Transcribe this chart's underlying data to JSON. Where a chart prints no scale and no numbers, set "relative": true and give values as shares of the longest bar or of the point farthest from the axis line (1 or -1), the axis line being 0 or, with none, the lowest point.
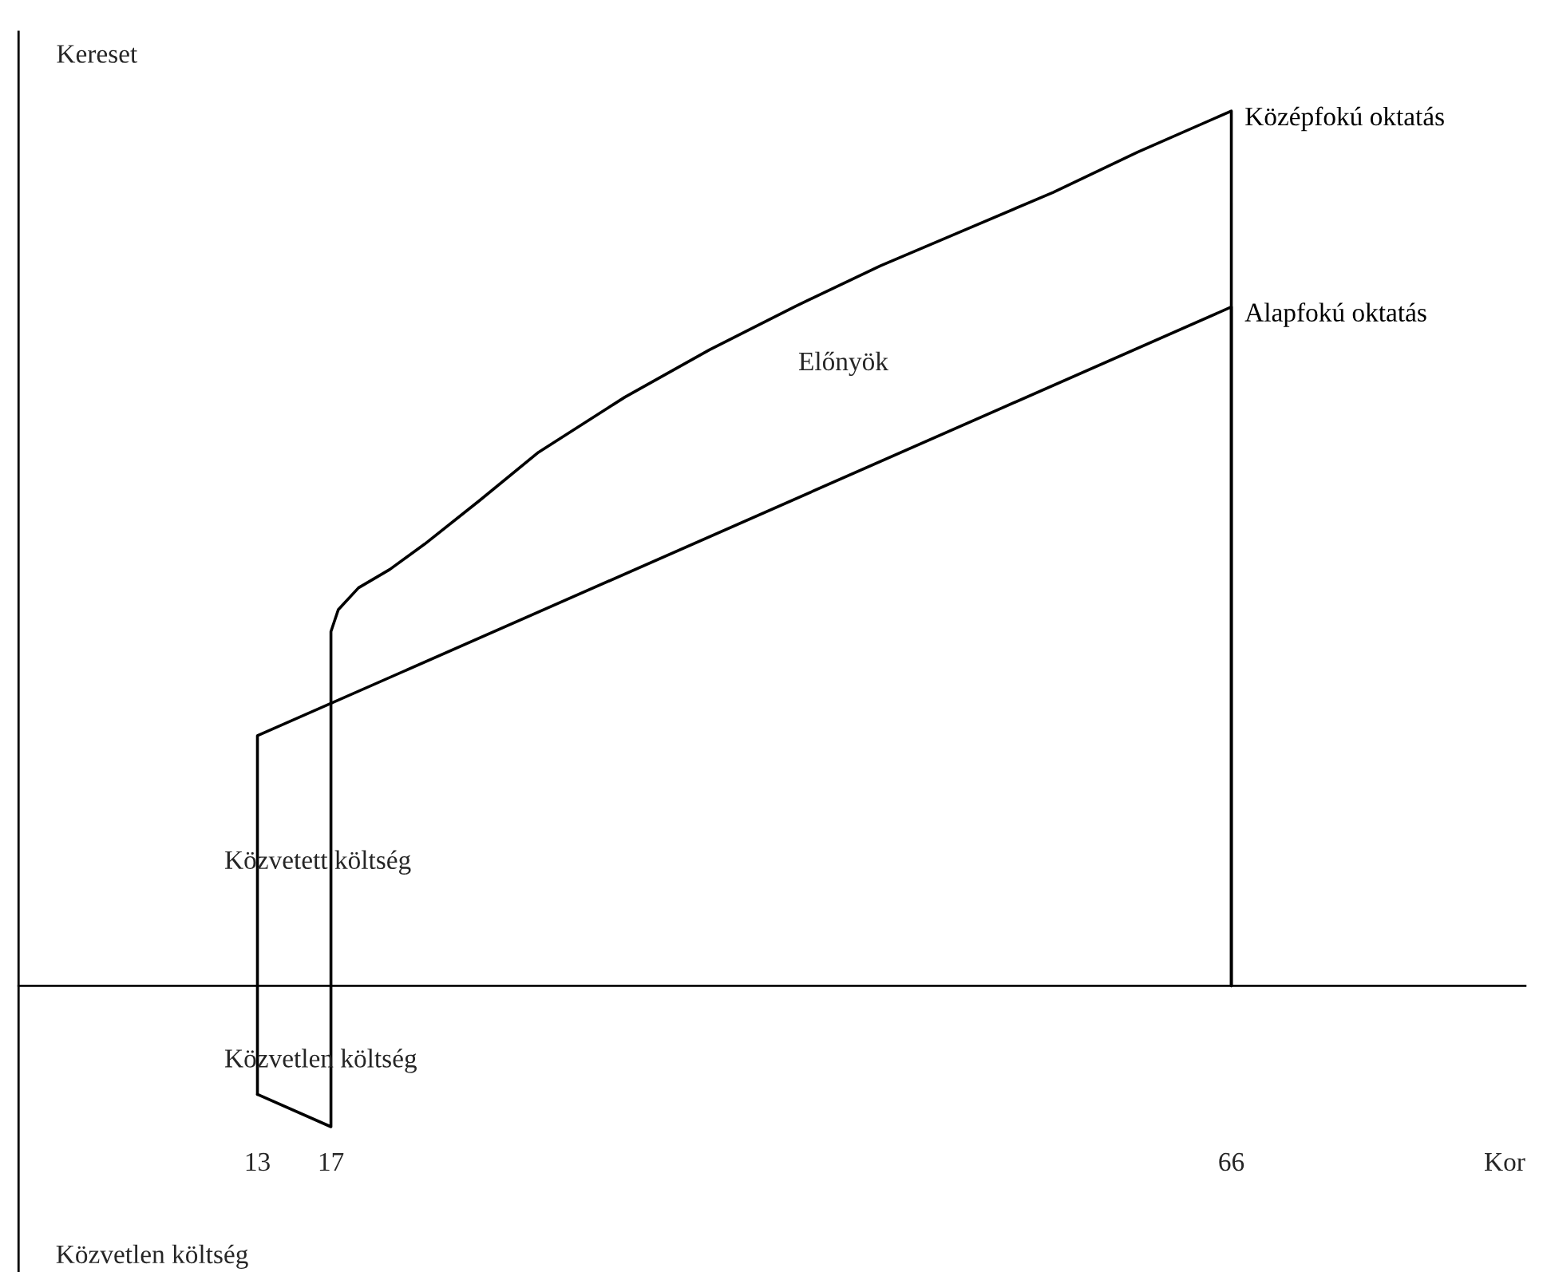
{
  "chart_data": {
    "type": "line",
    "relative": true,
    "xlabel": "Kor",
    "ylabel": "Kereset",
    "xlim": [
      0,
      82
    ],
    "xticks": [
      13,
      17,
      66
    ],
    "tick_labels": "x",
    "grid": false,
    "legend": false,
    "marker": "none",
    "line_style": "solid",
    "series": [
      {
        "name": "Alapfokú oktatás",
        "color": "#000000",
        "x": [
          13,
          13,
          66,
          66
        ],
        "values": [
          -0.124,
          0.286,
          0.776,
          0
        ]
      },
      {
        "name": "Középfokú oktatás",
        "color": "#000000",
        "x": [
          13,
          17,
          17,
          17.4,
          18.5,
          20.2,
          22.1,
          25.1,
          28.3,
          33.0,
          37.6,
          42.3,
          46.9,
          51.6,
          56.3,
          60.9,
          66,
          66
        ],
        "values": [
          -0.124,
          -0.161,
          0.405,
          0.43,
          0.455,
          0.476,
          0.505,
          0.555,
          0.61,
          0.673,
          0.727,
          0.777,
          0.823,
          0.865,
          0.907,
          0.953,
          1.0,
          0
        ]
      }
    ],
    "annotations": [
      "Előnyök",
      "Közvetett költség",
      "Közvetlen költség",
      "Közvetlen költség"
    ]
  }
}
